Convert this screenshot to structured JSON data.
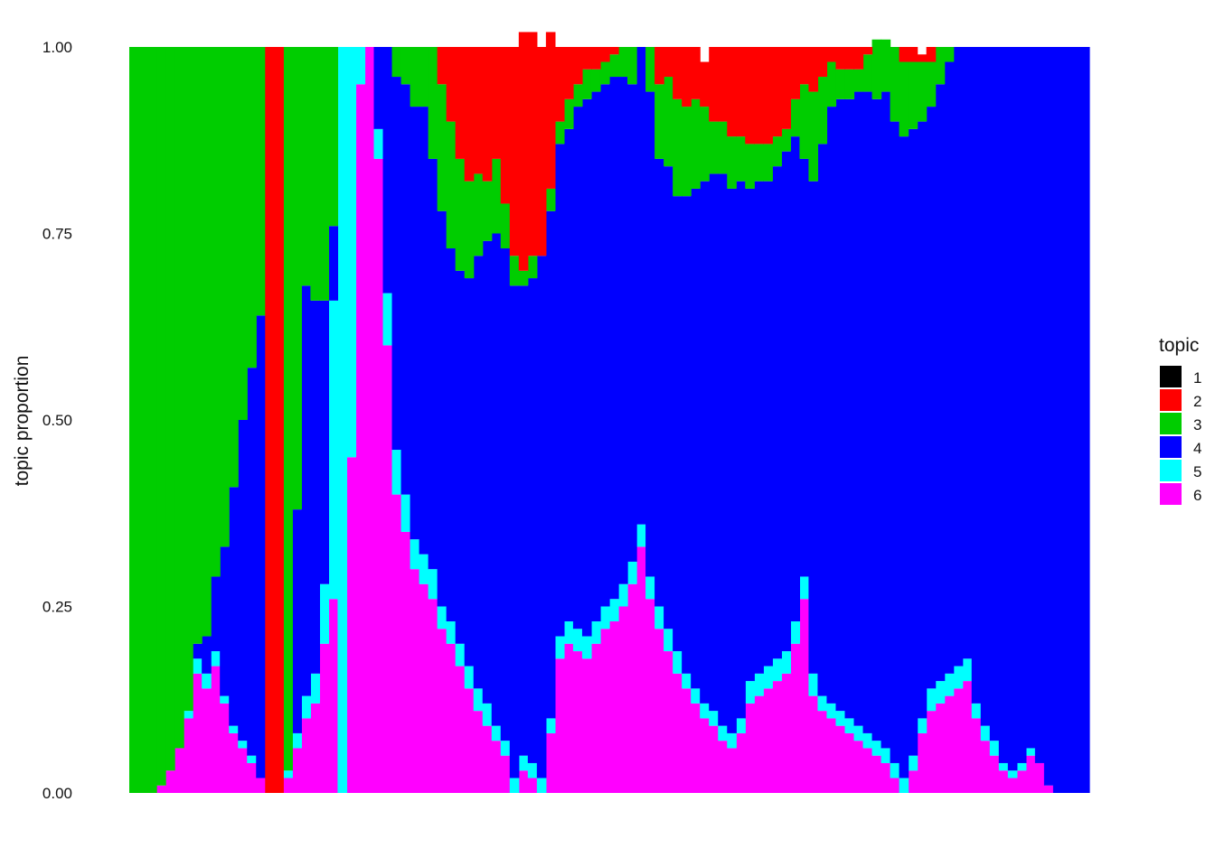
{
  "chart_data": {
    "type": "area",
    "stacked": true,
    "normalized": true,
    "title": "",
    "xlabel": "",
    "ylabel": "topic proportion",
    "ylim": [
      0,
      1
    ],
    "yticks": [
      "0.00",
      "0.25",
      "0.50",
      "0.75",
      "1.00"
    ],
    "x_tick_labels_shown": false,
    "grid": false,
    "legend": {
      "title": "topic",
      "position": "right",
      "entries": [
        {
          "label": "1",
          "color": "#000000"
        },
        {
          "label": "2",
          "color": "#FF0000"
        },
        {
          "label": "3",
          "color": "#00CD00"
        },
        {
          "label": "4",
          "color": "#0000FF"
        },
        {
          "label": "5",
          "color": "#00FFFF"
        },
        {
          "label": "6",
          "color": "#FF00FF"
        }
      ]
    },
    "sample_count": 106,
    "series_stack_order_bottom_to_top": [
      "6",
      "5",
      "4",
      "3",
      "2",
      "1"
    ],
    "series": [
      {
        "name": "6",
        "values": [
          0.0,
          0.0,
          0.0,
          0.01,
          0.03,
          0.06,
          0.1,
          0.16,
          0.14,
          0.17,
          0.12,
          0.08,
          0.06,
          0.04,
          0.02,
          0.0,
          0.0,
          0.02,
          0.06,
          0.1,
          0.12,
          0.2,
          0.26,
          0.0,
          0.45,
          0.95,
          1.0,
          0.85,
          0.6,
          0.4,
          0.35,
          0.3,
          0.28,
          0.26,
          0.22,
          0.2,
          0.17,
          0.14,
          0.11,
          0.09,
          0.07,
          0.05,
          0.0,
          0.03,
          0.02,
          0.0,
          0.08,
          0.18,
          0.2,
          0.19,
          0.18,
          0.2,
          0.22,
          0.23,
          0.25,
          0.28,
          0.33,
          0.26,
          0.22,
          0.19,
          0.16,
          0.14,
          0.12,
          0.1,
          0.09,
          0.07,
          0.06,
          0.08,
          0.12,
          0.13,
          0.14,
          0.15,
          0.16,
          0.2,
          0.26,
          0.13,
          0.11,
          0.1,
          0.09,
          0.08,
          0.07,
          0.06,
          0.05,
          0.04,
          0.02,
          0.0,
          0.03,
          0.08,
          0.11,
          0.12,
          0.13,
          0.14,
          0.15,
          0.1,
          0.07,
          0.05,
          0.03,
          0.02,
          0.03,
          0.05,
          0.04,
          0.01,
          0.0,
          0.0,
          0.0,
          0.0
        ]
      },
      {
        "name": "5",
        "values": [
          0.0,
          0.0,
          0.0,
          0.0,
          0.0,
          0.0,
          0.01,
          0.02,
          0.02,
          0.02,
          0.01,
          0.01,
          0.01,
          0.01,
          0.0,
          0.0,
          0.0,
          0.01,
          0.02,
          0.03,
          0.04,
          0.08,
          0.4,
          1.0,
          0.55,
          0.05,
          0.0,
          0.04,
          0.07,
          0.06,
          0.05,
          0.04,
          0.04,
          0.04,
          0.03,
          0.03,
          0.03,
          0.03,
          0.03,
          0.03,
          0.02,
          0.02,
          0.02,
          0.02,
          0.02,
          0.02,
          0.02,
          0.03,
          0.03,
          0.03,
          0.03,
          0.03,
          0.03,
          0.03,
          0.03,
          0.03,
          0.03,
          0.03,
          0.03,
          0.03,
          0.03,
          0.02,
          0.02,
          0.02,
          0.02,
          0.02,
          0.02,
          0.02,
          0.03,
          0.03,
          0.03,
          0.03,
          0.03,
          0.03,
          0.03,
          0.03,
          0.02,
          0.02,
          0.02,
          0.02,
          0.02,
          0.02,
          0.02,
          0.02,
          0.02,
          0.02,
          0.02,
          0.02,
          0.03,
          0.03,
          0.03,
          0.03,
          0.03,
          0.02,
          0.02,
          0.02,
          0.01,
          0.01,
          0.01,
          0.01,
          0.0,
          0.0,
          0.0,
          0.0,
          0.0,
          0.0
        ]
      },
      {
        "name": "4",
        "values": [
          0.0,
          0.0,
          0.0,
          0.0,
          0.0,
          0.0,
          0.0,
          0.02,
          0.05,
          0.1,
          0.2,
          0.32,
          0.43,
          0.52,
          0.62,
          0.0,
          0.0,
          0.0,
          0.3,
          0.55,
          0.5,
          0.38,
          0.1,
          0.0,
          0.0,
          0.0,
          0.0,
          0.11,
          0.33,
          0.5,
          0.55,
          0.58,
          0.6,
          0.55,
          0.53,
          0.5,
          0.5,
          0.52,
          0.58,
          0.62,
          0.66,
          0.66,
          0.66,
          0.63,
          0.65,
          0.7,
          0.68,
          0.66,
          0.66,
          0.7,
          0.72,
          0.71,
          0.7,
          0.7,
          0.68,
          0.64,
          0.64,
          0.65,
          0.6,
          0.62,
          0.61,
          0.64,
          0.67,
          0.7,
          0.72,
          0.74,
          0.73,
          0.72,
          0.66,
          0.66,
          0.65,
          0.66,
          0.67,
          0.65,
          0.56,
          0.66,
          0.74,
          0.8,
          0.82,
          0.83,
          0.85,
          0.86,
          0.86,
          0.88,
          0.86,
          0.86,
          0.84,
          0.8,
          0.78,
          0.8,
          0.82,
          0.83,
          0.82,
          0.88,
          0.91,
          0.93,
          0.96,
          0.97,
          0.96,
          0.94,
          0.96,
          0.99,
          1.0,
          1.0,
          1.0,
          1.0
        ]
      },
      {
        "name": "3",
        "values": [
          1.0,
          1.0,
          1.0,
          0.99,
          0.97,
          0.94,
          0.89,
          0.8,
          0.79,
          0.71,
          0.67,
          0.59,
          0.5,
          0.43,
          0.36,
          0.0,
          0.0,
          0.97,
          0.62,
          0.32,
          0.34,
          0.34,
          0.24,
          0.0,
          0.0,
          0.0,
          0.0,
          0.0,
          0.0,
          0.04,
          0.05,
          0.08,
          0.08,
          0.15,
          0.17,
          0.17,
          0.15,
          0.13,
          0.11,
          0.08,
          0.1,
          0.06,
          0.04,
          0.02,
          0.03,
          0.0,
          0.03,
          0.03,
          0.04,
          0.03,
          0.04,
          0.03,
          0.03,
          0.03,
          0.04,
          0.05,
          0.0,
          0.06,
          0.1,
          0.12,
          0.13,
          0.12,
          0.12,
          0.1,
          0.07,
          0.07,
          0.07,
          0.06,
          0.06,
          0.05,
          0.05,
          0.04,
          0.03,
          0.05,
          0.1,
          0.12,
          0.09,
          0.06,
          0.04,
          0.04,
          0.03,
          0.05,
          0.08,
          0.07,
          0.1,
          0.1,
          0.09,
          0.08,
          0.06,
          0.05,
          0.02,
          0.0,
          0.0,
          0.0,
          0.0,
          0.0,
          0.0,
          0.0,
          0.0,
          0.0,
          0.0,
          0.0,
          0.0,
          0.0,
          0.0,
          0.0
        ]
      },
      {
        "name": "2",
        "values": [
          0.0,
          0.0,
          0.0,
          0.0,
          0.0,
          0.0,
          0.0,
          0.0,
          0.0,
          0.0,
          0.0,
          0.0,
          0.0,
          0.0,
          0.0,
          1.0,
          1.0,
          0.0,
          0.0,
          0.0,
          0.0,
          0.0,
          0.0,
          0.0,
          0.0,
          0.0,
          0.0,
          0.0,
          0.0,
          0.0,
          0.0,
          0.0,
          0.0,
          0.0,
          0.05,
          0.1,
          0.15,
          0.18,
          0.17,
          0.18,
          0.15,
          0.21,
          0.28,
          0.32,
          0.3,
          0.28,
          0.21,
          0.1,
          0.07,
          0.05,
          0.03,
          0.03,
          0.02,
          0.01,
          0.0,
          0.0,
          0.0,
          0.0,
          0.05,
          0.04,
          0.07,
          0.08,
          0.07,
          0.06,
          0.1,
          0.1,
          0.12,
          0.12,
          0.13,
          0.13,
          0.13,
          0.12,
          0.11,
          0.07,
          0.05,
          0.06,
          0.04,
          0.02,
          0.03,
          0.03,
          0.03,
          0.01,
          0.0,
          0.0,
          0.0,
          0.02,
          0.02,
          0.01,
          0.02,
          0.0,
          0.0,
          0.0,
          0.0,
          0.0,
          0.0,
          0.0,
          0.0,
          0.0,
          0.0,
          0.0,
          0.0,
          0.0,
          0.0,
          0.0,
          0.0,
          0.0
        ]
      },
      {
        "name": "1",
        "values": [
          0.0,
          0.0,
          0.0,
          0.0,
          0.0,
          0.0,
          0.0,
          0.0,
          0.0,
          0.0,
          0.0,
          0.0,
          0.0,
          0.0,
          0.0,
          0.0,
          0.0,
          0.0,
          0.0,
          0.0,
          0.0,
          0.0,
          0.0,
          0.0,
          0.0,
          0.0,
          0.0,
          0.0,
          0.0,
          0.0,
          0.0,
          0.0,
          0.0,
          0.0,
          0.0,
          0.0,
          0.0,
          0.0,
          0.0,
          0.0,
          0.0,
          0.0,
          0.0,
          0.0,
          0.0,
          0.0,
          0.0,
          0.0,
          0.0,
          0.0,
          0.0,
          0.0,
          0.0,
          0.0,
          0.0,
          0.0,
          0.0,
          0.0,
          0.0,
          0.0,
          0.0,
          0.0,
          0.0,
          0.0,
          0.0,
          0.0,
          0.0,
          0.0,
          0.0,
          0.0,
          0.0,
          0.0,
          0.0,
          0.0,
          0.0,
          0.0,
          0.0,
          0.0,
          0.0,
          0.0,
          0.0,
          0.0,
          0.0,
          0.0,
          0.0,
          0.0,
          0.0,
          0.0,
          0.0,
          0.0,
          0.0,
          0.0,
          0.0,
          0.0,
          0.0,
          0.0,
          0.0,
          0.0,
          0.0,
          0.0,
          0.0,
          0.0,
          0.0,
          0.0,
          0.0,
          0.0
        ]
      }
    ]
  }
}
